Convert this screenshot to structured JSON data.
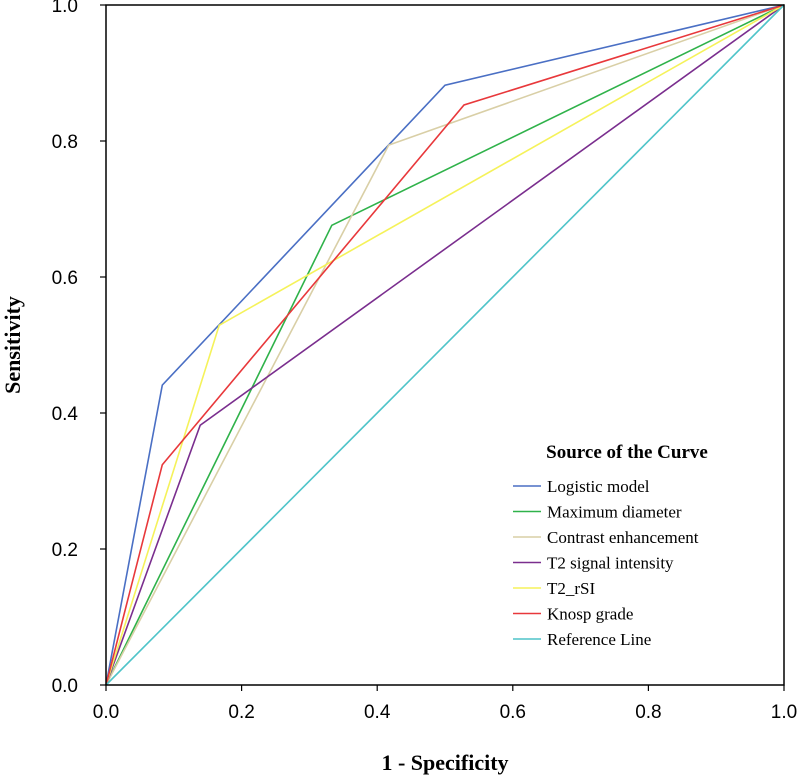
{
  "chart_data": {
    "type": "line",
    "title": "",
    "xlabel": "1 - Specificity",
    "ylabel": "Sensitivity",
    "xlim": [
      0,
      1
    ],
    "ylim": [
      0,
      1
    ],
    "x_ticks": [
      "0.0",
      "0.2",
      "0.4",
      "0.6",
      "0.8",
      "1.0"
    ],
    "y_ticks": [
      "0.0",
      "0.2",
      "0.4",
      "0.6",
      "0.8",
      "1.0"
    ],
    "grid": false,
    "legend": {
      "title": "Source of the Curve",
      "position": "bottom-right"
    },
    "series": [
      {
        "name": "Logistic model",
        "color": "#4a6fc4",
        "x": [
          0,
          0.083,
          0.5,
          1
        ],
        "y": [
          0,
          0.441,
          0.882,
          1
        ]
      },
      {
        "name": "Maximum diameter",
        "color": "#2fb24a",
        "x": [
          0,
          0.333,
          1
        ],
        "y": [
          0,
          0.676,
          1
        ]
      },
      {
        "name": "Contrast enhancement",
        "color": "#d9cfa6",
        "x": [
          0,
          0.417,
          1
        ],
        "y": [
          0,
          0.794,
          1
        ]
      },
      {
        "name": "T2 signal intensity",
        "color": "#7a2e8e",
        "x": [
          0,
          0.139,
          1
        ],
        "y": [
          0,
          0.382,
          1
        ]
      },
      {
        "name": "T2_rSI",
        "color": "#f5f25a",
        "x": [
          0,
          0.167,
          1
        ],
        "y": [
          0,
          0.529,
          1
        ]
      },
      {
        "name": "Knosp grade",
        "color": "#e8383b",
        "x": [
          0,
          0.083,
          0.528,
          1
        ],
        "y": [
          0,
          0.324,
          0.853,
          1
        ]
      },
      {
        "name": "Reference Line",
        "color": "#4fc4c9",
        "x": [
          0,
          1
        ],
        "y": [
          0,
          1
        ]
      }
    ]
  }
}
